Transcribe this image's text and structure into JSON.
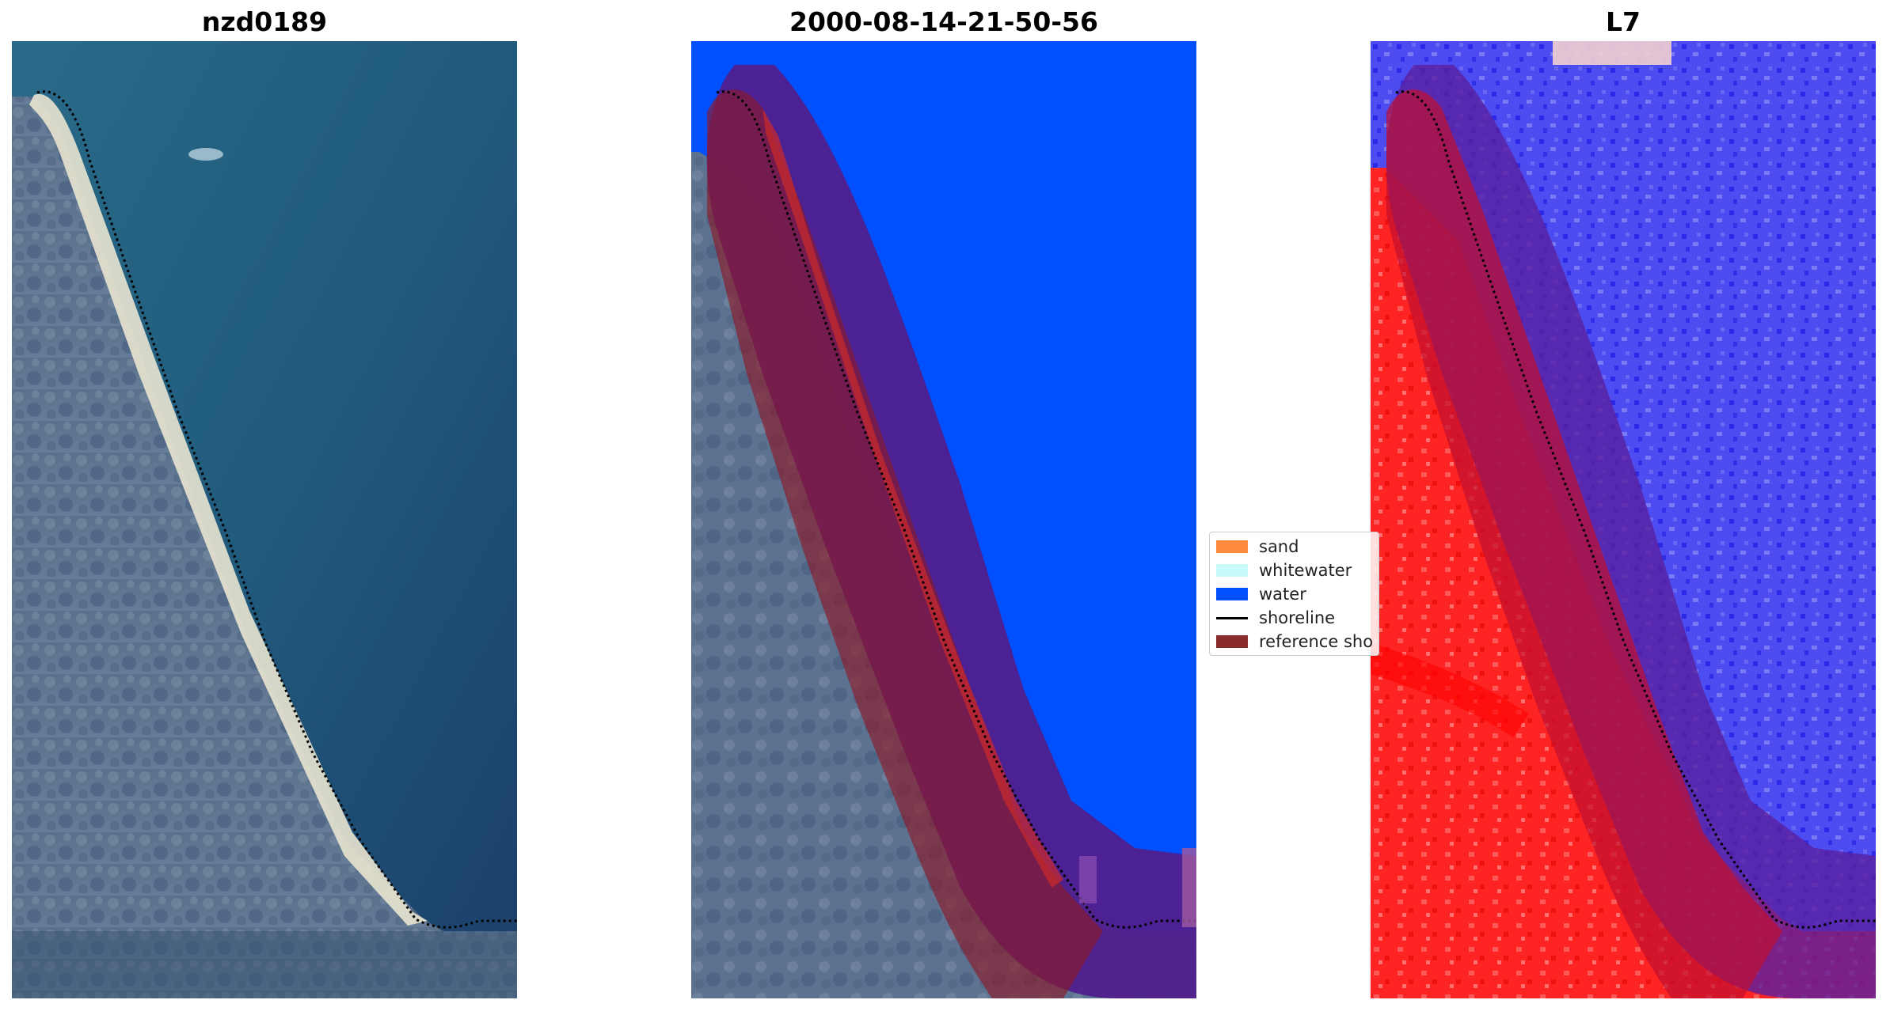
{
  "figure": {
    "panels": [
      {
        "title": "nzd0189"
      },
      {
        "title": "2000-08-14-21-50-56"
      },
      {
        "title": "L7"
      }
    ],
    "legend": {
      "items": [
        {
          "label": "sand",
          "color": "#ff8c3c",
          "kind": "patch"
        },
        {
          "label": "whitewater",
          "color": "#c8fafa",
          "kind": "patch"
        },
        {
          "label": "water",
          "color": "#0050ff",
          "kind": "patch"
        },
        {
          "label": "shoreline",
          "color": "#000000",
          "kind": "line"
        },
        {
          "label": "reference sho",
          "color": "#8b1a1a",
          "kind": "patch"
        }
      ]
    },
    "colors": {
      "land": "#5d7290",
      "sea": "#1f5a78",
      "water_class": "#0050ff",
      "buffer_purple": "#4f1f8e",
      "reference_red": "#8b1a2a",
      "index_red": "#ff1010",
      "index_blue": "#3b3bf0",
      "beach_sand": "#e8e4d0"
    }
  }
}
